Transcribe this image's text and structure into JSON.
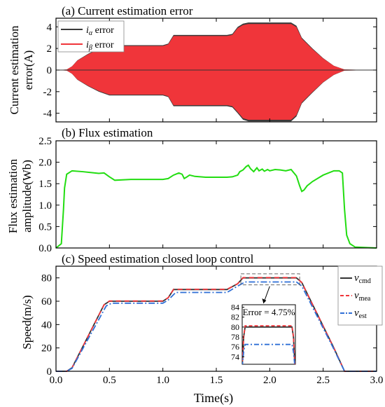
{
  "chart_data": [
    {
      "type": "area",
      "title": "(a) Current estimation error",
      "ylabel_lines": [
        "Current estimation",
        "error(A)"
      ],
      "xlim": [
        0,
        3.0
      ],
      "ylim": [
        -4.8,
        4.8
      ],
      "yticks": [
        -4,
        -2,
        0,
        2,
        4
      ],
      "legend_position": "top-left",
      "series": [
        {
          "name": "i_α error",
          "name_main": "i",
          "name_sub": "α",
          "name_rest": " error",
          "color": "#3a3a3a"
        },
        {
          "name": "i_β error",
          "name_main": "i",
          "name_sub": "β",
          "name_rest": " error",
          "color": "#f0353a"
        }
      ],
      "envelope": {
        "x": [
          0.0,
          0.1,
          0.15,
          0.2,
          0.3,
          0.4,
          0.5,
          0.55,
          1.0,
          1.05,
          1.1,
          1.6,
          1.65,
          1.7,
          1.75,
          1.8,
          1.9,
          2.0,
          2.1,
          2.2,
          2.25,
          2.3,
          2.4,
          2.5,
          2.6,
          2.7,
          3.0
        ],
        "upper": [
          0.0,
          0.05,
          0.35,
          0.9,
          1.5,
          2.0,
          2.3,
          2.3,
          2.3,
          2.45,
          3.25,
          3.25,
          3.35,
          4.0,
          4.3,
          4.4,
          4.4,
          4.4,
          4.4,
          4.4,
          4.1,
          3.0,
          2.0,
          1.1,
          0.4,
          0.05,
          0.0
        ],
        "lower": [
          0.0,
          -0.05,
          -0.35,
          -0.9,
          -1.5,
          -2.0,
          -2.35,
          -2.35,
          -2.35,
          -2.5,
          -3.35,
          -3.35,
          -3.45,
          -4.0,
          -4.6,
          -4.75,
          -4.75,
          -4.75,
          -4.75,
          -4.75,
          -4.3,
          -3.1,
          -2.1,
          -1.15,
          -0.45,
          -0.05,
          0.0
        ]
      }
    },
    {
      "type": "line",
      "title": "(b) Flux estimation",
      "ylabel_lines": [
        "Flux estimation",
        "amplitude(Wb)"
      ],
      "xlim": [
        0,
        3.0
      ],
      "ylim": [
        0,
        2.5
      ],
      "yticks": [
        0.0,
        0.5,
        1.0,
        1.5,
        2.0,
        2.5
      ],
      "series": [
        {
          "name": "",
          "color": "#22dd11",
          "x": [
            0.0,
            0.05,
            0.07,
            0.08,
            0.1,
            0.15,
            0.25,
            0.4,
            0.45,
            0.5,
            0.55,
            0.7,
            1.0,
            1.05,
            1.1,
            1.15,
            1.18,
            1.2,
            1.22,
            1.25,
            1.3,
            1.4,
            1.6,
            1.65,
            1.7,
            1.72,
            1.75,
            1.78,
            1.8,
            1.82,
            1.85,
            1.88,
            1.9,
            1.93,
            1.95,
            1.98,
            2.0,
            2.05,
            2.1,
            2.15,
            2.2,
            2.25,
            2.28,
            2.3,
            2.32,
            2.35,
            2.4,
            2.5,
            2.6,
            2.65,
            2.68,
            2.7,
            2.72,
            2.75,
            2.8,
            3.0
          ],
          "y": [
            0.0,
            0.1,
            0.9,
            1.4,
            1.72,
            1.8,
            1.78,
            1.74,
            1.75,
            1.66,
            1.58,
            1.6,
            1.6,
            1.62,
            1.7,
            1.75,
            1.72,
            1.62,
            1.65,
            1.7,
            1.67,
            1.65,
            1.65,
            1.66,
            1.7,
            1.78,
            1.82,
            1.9,
            1.93,
            1.85,
            1.78,
            1.87,
            1.8,
            1.84,
            1.79,
            1.83,
            1.8,
            1.83,
            1.82,
            1.8,
            1.83,
            1.68,
            1.45,
            1.32,
            1.35,
            1.45,
            1.55,
            1.7,
            1.8,
            1.8,
            1.75,
            0.9,
            0.3,
            0.1,
            0.02,
            0.0
          ]
        }
      ]
    },
    {
      "type": "line",
      "title": "(c) Speed estimation closed loop control",
      "xlabel": "Time(s)",
      "ylabel": "Speed(m/s)",
      "xlim": [
        0,
        3.0
      ],
      "ylim": [
        0,
        90
      ],
      "xticks": [
        0.0,
        0.5,
        1.0,
        1.5,
        2.0,
        2.5,
        3.0
      ],
      "yticks": [
        0,
        20,
        40,
        60,
        80
      ],
      "legend_position": "right",
      "series": [
        {
          "name": "v_cmd",
          "name_main": "v",
          "name_sub": "cmd",
          "color": "#333333",
          "dash": "",
          "x": [
            0.0,
            0.1,
            0.15,
            0.45,
            0.5,
            1.0,
            1.05,
            1.1,
            1.6,
            1.7,
            1.75,
            2.25,
            2.3,
            2.6,
            2.7,
            3.0
          ],
          "y": [
            0,
            0,
            3,
            57,
            60,
            60,
            63,
            70,
            70,
            75,
            80,
            80,
            76,
            20,
            0,
            0
          ]
        },
        {
          "name": "v_mea",
          "name_main": "v",
          "name_sub": "mea",
          "color": "#f0353a",
          "dash": "7,5",
          "x": [
            0.0,
            0.1,
            0.15,
            0.45,
            0.5,
            1.0,
            1.05,
            1.1,
            1.6,
            1.7,
            1.75,
            2.25,
            2.3,
            2.6,
            2.7,
            3.0
          ],
          "y": [
            0,
            0,
            3,
            57,
            60.2,
            60.2,
            63,
            70.2,
            70.2,
            75,
            80.2,
            80.2,
            76,
            20,
            0,
            0
          ]
        },
        {
          "name": "v_est",
          "name_main": "v",
          "name_sub": "est",
          "color": "#2f6fd6",
          "dash": "9,3,2,3",
          "x": [
            0.0,
            0.1,
            0.15,
            0.47,
            0.52,
            1.0,
            1.05,
            1.12,
            1.6,
            1.7,
            1.77,
            2.25,
            2.3,
            2.6,
            2.7,
            3.0
          ],
          "y": [
            0,
            0,
            2.5,
            56,
            58.3,
            58.3,
            61,
            67.5,
            67.5,
            73,
            76.5,
            76.5,
            73,
            19,
            0,
            0
          ]
        }
      ],
      "inset": {
        "annotation": "Error = 4.75%",
        "xlim": [
          1.73,
          2.28
        ],
        "ylim": [
          72.5,
          84.5
        ],
        "yticks": [
          74,
          76,
          78,
          80,
          82,
          84
        ],
        "series": [
          {
            "color": "#333333",
            "dash": "",
            "x": [
              1.73,
              1.745,
              1.76,
              2.245,
              2.26,
              2.275
            ],
            "y": [
              72,
              78,
              80,
              80,
              78,
              72
            ]
          },
          {
            "color": "#f0353a",
            "dash": "5,3",
            "x": [
              1.73,
              1.745,
              1.76,
              2.245,
              2.26,
              2.275
            ],
            "y": [
              72,
              78,
              80.25,
              80.25,
              78,
              72
            ]
          },
          {
            "color": "#2f6fd6",
            "dash": "7,3,2,3",
            "x": [
              1.73,
              1.745,
              1.76,
              2.245,
              2.26,
              2.275
            ],
            "y": [
              72,
              75,
              76.5,
              76.5,
              75,
              72
            ]
          }
        ]
      }
    }
  ]
}
